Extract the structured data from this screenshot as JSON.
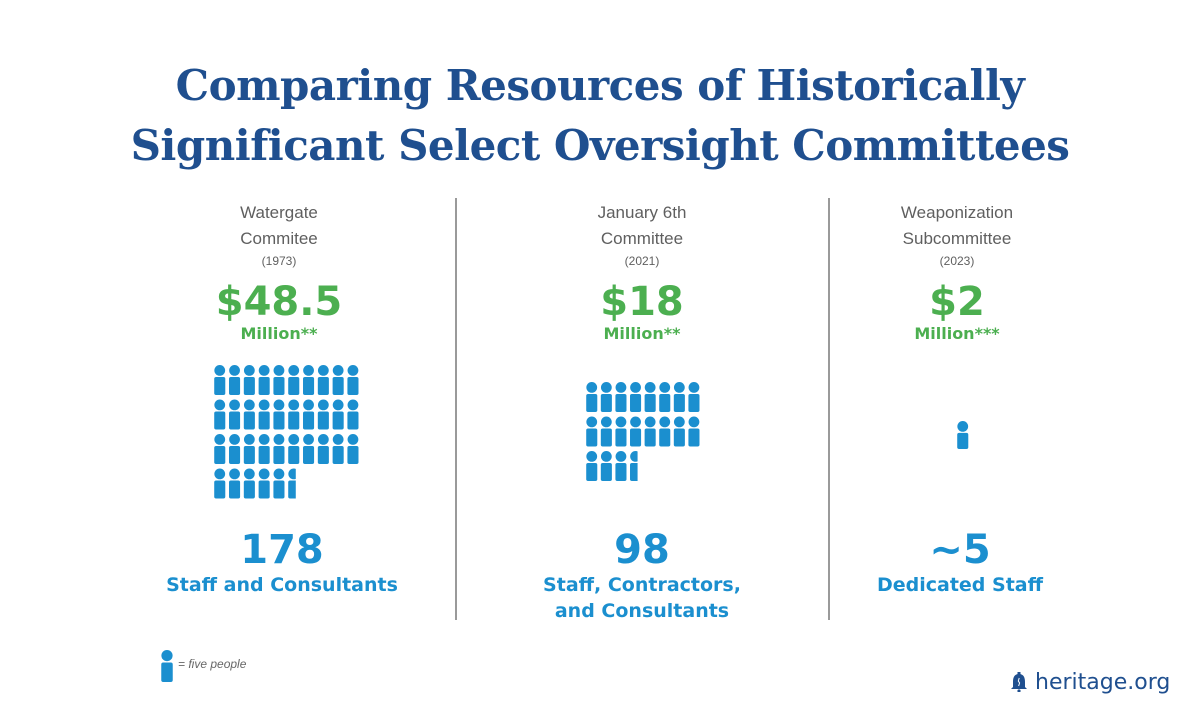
{
  "title_lines": [
    "Comparing Resources of Historically",
    "Significant Select Oversight Committees"
  ],
  "colors": {
    "title": "#1f4f8f",
    "money": "#4caf50",
    "staff": "#1b8fcf",
    "label": "#5f5f5f",
    "divider": "#9a9a9a"
  },
  "legend": {
    "icon": "person-icon",
    "text": "= five people"
  },
  "brand": {
    "icon": "liberty-bell-icon",
    "text": "heritage.org"
  },
  "chart_data": {
    "type": "pictograph",
    "title": "Comparing Resources of Historically Significant Select Oversight Committees",
    "unit_per_icon": 5,
    "categories": [
      {
        "name_lines": [
          "Watergate",
          "Commitee"
        ],
        "year": "(1973)",
        "amount": "$48.5",
        "amount_unit": "Million**",
        "staff_count": "178",
        "staff_label_lines": [
          "Staff and Consultants"
        ],
        "icons": 35.6
      },
      {
        "name_lines": [
          "January 6th",
          "Committee"
        ],
        "year": "(2021)",
        "amount": "$18",
        "amount_unit": "Million**",
        "staff_count": "98",
        "staff_label_lines": [
          "Staff, Contractors,",
          "and Consultants"
        ],
        "icons": 19.6
      },
      {
        "name_lines": [
          "Weaponization",
          "Subcommittee"
        ],
        "year": "(2023)",
        "amount": "$2",
        "amount_unit": "Million***",
        "staff_count": "~5",
        "staff_label_lines": [
          "Dedicated Staff"
        ],
        "icons": 1
      }
    ]
  }
}
